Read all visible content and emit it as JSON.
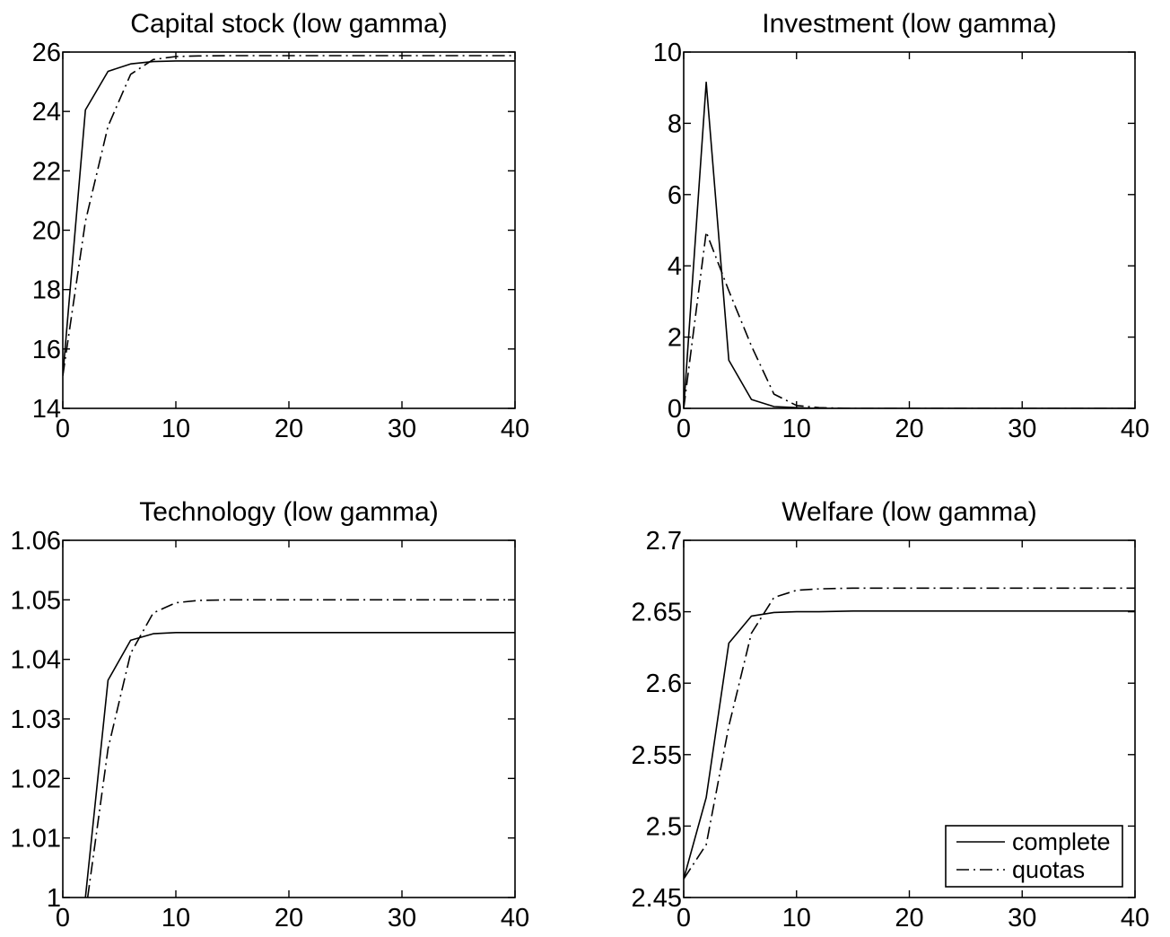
{
  "chart_data": [
    {
      "type": "line",
      "title": "Capital stock (low gamma)",
      "xlim": [
        0,
        40
      ],
      "ylim": [
        14,
        26
      ],
      "xticks": [
        "0",
        "10",
        "20",
        "30",
        "40"
      ],
      "yticks": [
        "14",
        "16",
        "18",
        "20",
        "22",
        "24",
        "26"
      ],
      "grid": false,
      "series": [
        {
          "style": "solid",
          "x": [
            0,
            2,
            4,
            6,
            8,
            10,
            12,
            15,
            20,
            25,
            30,
            35,
            40
          ],
          "values": [
            15.1,
            24.05,
            25.35,
            25.6,
            25.68,
            25.7,
            25.7,
            25.7,
            25.7,
            25.7,
            25.7,
            25.7,
            25.7
          ]
        },
        {
          "style": "dashdot",
          "x": [
            0,
            2,
            4,
            6,
            8,
            10,
            12,
            15,
            20,
            25,
            30,
            35,
            40
          ],
          "values": [
            15.1,
            20.3,
            23.5,
            25.25,
            25.75,
            25.85,
            25.87,
            25.88,
            25.88,
            25.88,
            25.88,
            25.88,
            25.88
          ]
        }
      ]
    },
    {
      "type": "line",
      "title": "Investment (low gamma)",
      "xlim": [
        0,
        40
      ],
      "ylim": [
        0,
        10
      ],
      "xticks": [
        "0",
        "10",
        "20",
        "30",
        "40"
      ],
      "yticks": [
        "0",
        "2",
        "4",
        "6",
        "8",
        "10"
      ],
      "grid": false,
      "series": [
        {
          "style": "solid",
          "x": [
            0,
            2,
            4,
            6,
            8,
            10,
            12,
            15,
            20,
            25,
            30,
            35,
            40
          ],
          "values": [
            0,
            9.15,
            1.35,
            0.25,
            0.05,
            0.02,
            0,
            0,
            0,
            0,
            0,
            0,
            0
          ]
        },
        {
          "style": "dashdot",
          "x": [
            0,
            2,
            4,
            6,
            8,
            10,
            12,
            15,
            20,
            25,
            30,
            35,
            40
          ],
          "values": [
            0,
            4.95,
            3.3,
            1.75,
            0.4,
            0.08,
            0.02,
            0,
            0,
            0,
            0,
            0,
            0
          ]
        }
      ]
    },
    {
      "type": "line",
      "title": "Technology (low gamma)",
      "xlim": [
        0,
        40
      ],
      "ylim": [
        1,
        1.06
      ],
      "xticks": [
        "0",
        "10",
        "20",
        "30",
        "40"
      ],
      "yticks": [
        "1",
        "1.01",
        "1.02",
        "1.03",
        "1.04",
        "1.05",
        "1.06"
      ],
      "grid": false,
      "series": [
        {
          "style": "solid",
          "x": [
            2,
            4,
            6,
            8,
            10,
            12,
            15,
            20,
            25,
            30,
            35,
            40
          ],
          "values": [
            1.0,
            1.0365,
            1.0432,
            1.0443,
            1.0445,
            1.0445,
            1.0445,
            1.0445,
            1.0445,
            1.0445,
            1.0445,
            1.0445
          ]
        },
        {
          "style": "dashdot",
          "x": [
            2.2,
            4,
            6,
            8,
            10,
            12,
            15,
            20,
            25,
            30,
            35,
            40
          ],
          "values": [
            1.0,
            1.025,
            1.041,
            1.0478,
            1.0495,
            1.0499,
            1.05,
            1.05,
            1.05,
            1.05,
            1.05,
            1.05
          ]
        }
      ]
    },
    {
      "type": "line",
      "title": "Welfare (low gamma)",
      "xlim": [
        0,
        40
      ],
      "ylim": [
        2.45,
        2.7
      ],
      "xticks": [
        "0",
        "10",
        "20",
        "30",
        "40"
      ],
      "yticks": [
        "2.45",
        "2.5",
        "2.55",
        "2.6",
        "2.65",
        "2.7"
      ],
      "grid": false,
      "legend": {
        "position": "bottom-right",
        "entries": [
          {
            "label": "complete",
            "style": "solid"
          },
          {
            "label": "quotas",
            "style": "dashdot"
          }
        ]
      },
      "series": [
        {
          "name": "complete",
          "style": "solid",
          "x": [
            0,
            2,
            4,
            6,
            8,
            10,
            12,
            15,
            20,
            25,
            30,
            35,
            40
          ],
          "values": [
            2.463,
            2.52,
            2.628,
            2.647,
            2.6495,
            2.65,
            2.65,
            2.6505,
            2.6505,
            2.6505,
            2.6505,
            2.6505,
            2.6505
          ]
        },
        {
          "name": "quotas",
          "style": "dashdot",
          "x": [
            0,
            2,
            4,
            6,
            8,
            10,
            12,
            15,
            20,
            25,
            30,
            35,
            40
          ],
          "values": [
            2.463,
            2.487,
            2.57,
            2.635,
            2.66,
            2.665,
            2.666,
            2.6665,
            2.6665,
            2.6665,
            2.6665,
            2.6665,
            2.6665
          ]
        }
      ]
    }
  ]
}
